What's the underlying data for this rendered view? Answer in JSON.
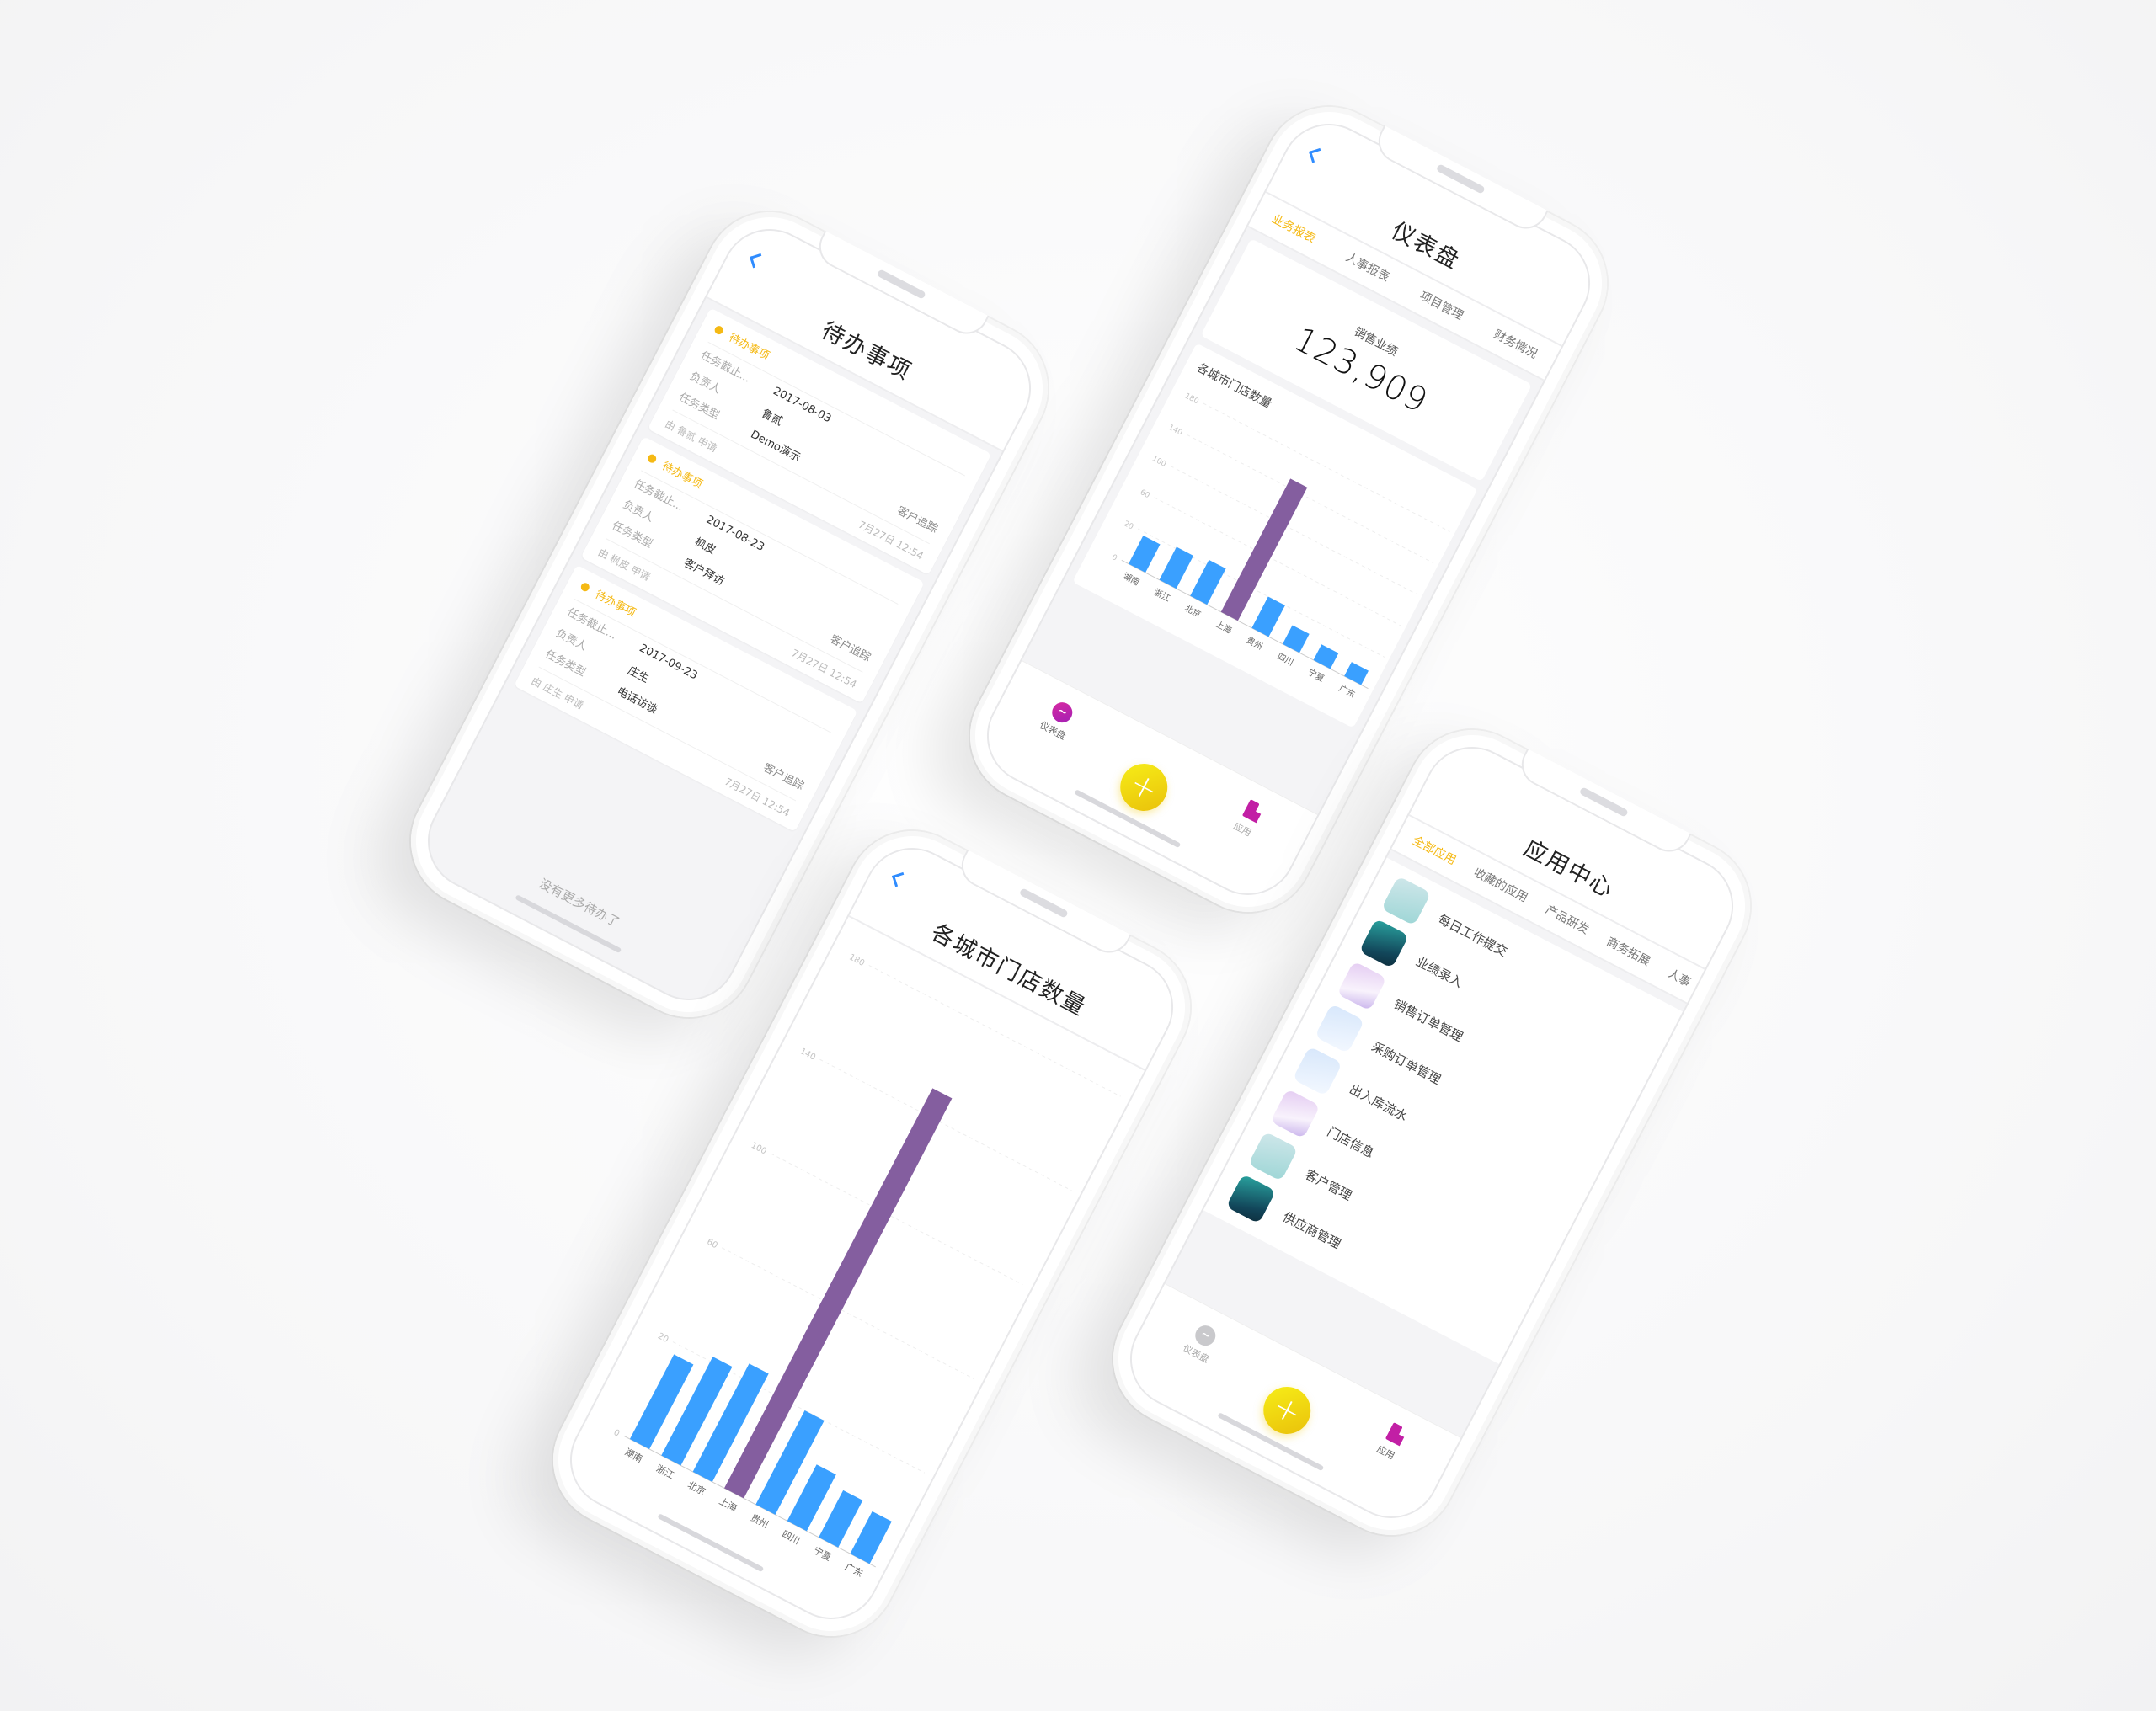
{
  "colors": {
    "accent": "#f5b914",
    "bar": "#3aa0ff",
    "highlight_bar": "#845e9f",
    "tab_icon_active": "#c21fa5",
    "back_arrow": "#2f8cff"
  },
  "todo_phone": {
    "title": "待办事项",
    "back_icon": "chevron-left-icon",
    "cards": [
      {
        "status": "待办事项",
        "fields": [
          {
            "label": "任务截止...",
            "value": "2017-08-03"
          },
          {
            "label": "负责人",
            "value": "鲁贰"
          },
          {
            "label": "任务类型",
            "value": "Demo演示"
          }
        ],
        "tag": "客户追踪",
        "applicant": "由  鲁贰  申请",
        "time": "7月27日 12:54"
      },
      {
        "status": "待办事项",
        "fields": [
          {
            "label": "任务截止...",
            "value": "2017-08-23"
          },
          {
            "label": "负责人",
            "value": "枫皮"
          },
          {
            "label": "任务类型",
            "value": "客户拜访"
          }
        ],
        "tag": "客户追踪",
        "applicant": "由  枫皮  申请",
        "time": "7月27日 12:54"
      },
      {
        "status": "待办事项",
        "fields": [
          {
            "label": "任务截止...",
            "value": "2017-09-23"
          },
          {
            "label": "负责人",
            "value": "庄生"
          },
          {
            "label": "任务类型",
            "value": "电话访谈"
          }
        ],
        "tag": "客户追踪",
        "applicant": "由  庄生  申请",
        "time": "7月27日 12:54"
      }
    ],
    "empty_text": "没有更多待办了"
  },
  "dashboard_phone": {
    "title": "仪表盘",
    "tabs": [
      {
        "label": "业务报表",
        "active": true
      },
      {
        "label": "人事报表"
      },
      {
        "label": "项目管理"
      },
      {
        "label": "财务情况"
      }
    ],
    "kpi": {
      "label": "销售业绩",
      "value": "123,909"
    },
    "chart_title": "各城市门店数量",
    "tabbar": {
      "left": "仪表盘",
      "right": "应用",
      "center_icon": "plus-icon",
      "left_icon": "dashboard-icon",
      "right_icon": "building-icon",
      "active": "仪表盘"
    }
  },
  "chart_phone": {
    "title": "各城市门店数量"
  },
  "apps_phone": {
    "title": "应用中心",
    "tabs": [
      {
        "label": "全部应用",
        "active": true
      },
      {
        "label": "收藏的应用"
      },
      {
        "label": "产品研发"
      },
      {
        "label": "商务拓展"
      },
      {
        "label": "人事"
      }
    ],
    "apps": [
      {
        "label": "每日工作提交",
        "icon": "teal-light"
      },
      {
        "label": "业绩录入",
        "icon": "teal-dark"
      },
      {
        "label": "销售订单管理",
        "icon": "lavender"
      },
      {
        "label": "采购订单管理",
        "icon": "pale-blue"
      },
      {
        "label": "出入库流水",
        "icon": "pale-blue"
      },
      {
        "label": "门店信息",
        "icon": "lavender"
      },
      {
        "label": "客户管理",
        "icon": "teal-light"
      },
      {
        "label": "供应商管理",
        "icon": "teal-dark"
      }
    ],
    "tabbar": {
      "left": "仪表盘",
      "right": "应用",
      "active": "应用"
    }
  },
  "chart_data": [
    {
      "type": "bar",
      "title": "各城市门店数量",
      "categories": [
        "湖南",
        "浙江",
        "北京",
        "上海",
        "贵州",
        "四川",
        "宁夏",
        "广东"
      ],
      "values": [
        18,
        22,
        26,
        150,
        20,
        12,
        10,
        9
      ],
      "bar_colors": [
        "#3aa0ff",
        "#3aa0ff",
        "#3aa0ff",
        "#845e9f",
        "#3aa0ff",
        "#3aa0ff",
        "#3aa0ff",
        "#3aa0ff"
      ],
      "y_ticks": [
        "0",
        "20",
        "60",
        "100",
        "140",
        "180"
      ],
      "grid": true
    },
    {
      "type": "bar",
      "title": "各城市门店数量",
      "categories": [
        "湖南",
        "浙江",
        "北京",
        "上海",
        "贵州",
        "四川",
        "宁夏",
        "广东"
      ],
      "values": [
        18,
        22,
        26,
        150,
        20,
        12,
        10,
        9
      ],
      "bar_colors": [
        "#3aa0ff",
        "#3aa0ff",
        "#3aa0ff",
        "#845e9f",
        "#3aa0ff",
        "#3aa0ff",
        "#3aa0ff",
        "#3aa0ff"
      ],
      "y_ticks": [
        "0",
        "20",
        "60",
        "100",
        "140",
        "180"
      ],
      "grid": true
    }
  ]
}
